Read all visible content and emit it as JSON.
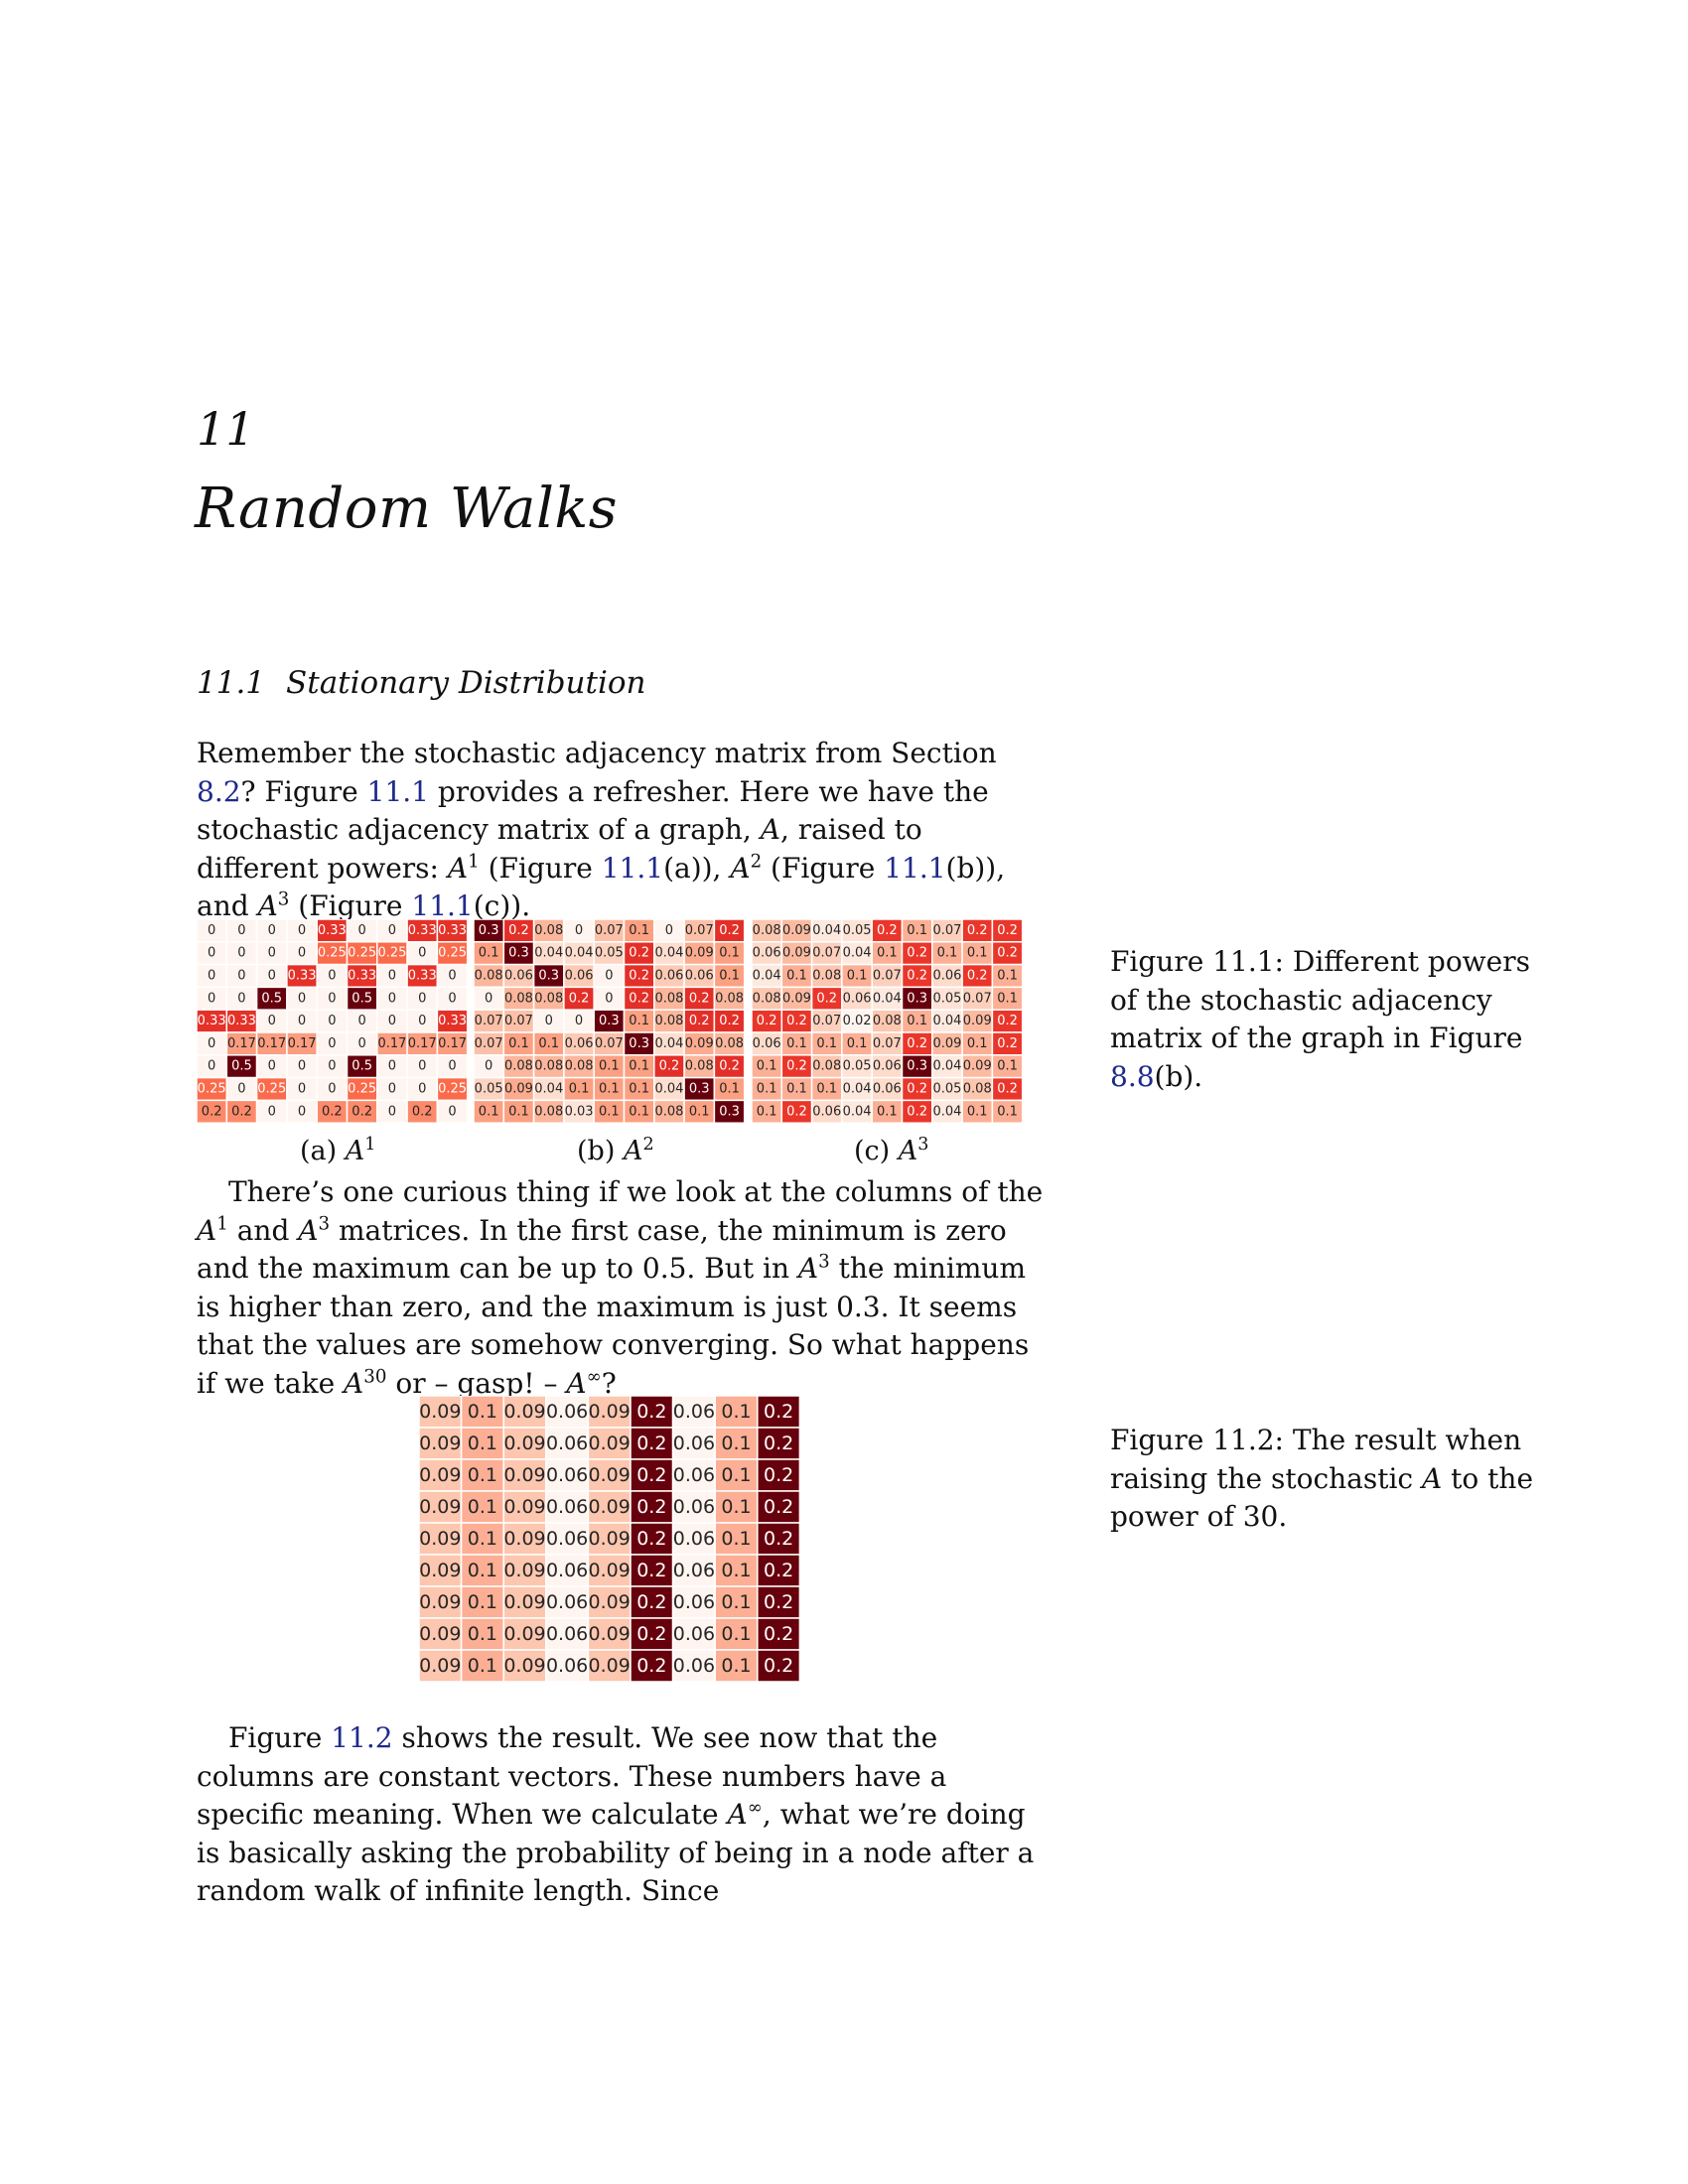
{
  "chapter": {
    "number": "11",
    "title": "Random Walks"
  },
  "section": {
    "number": "11.1",
    "title": "Stationary Distribution"
  },
  "para1": {
    "t1": "Remember the stochastic adjacency matrix from Section ",
    "r1": "8.2",
    "t2": "? Figure ",
    "r2": "11.1",
    "t3": " provides a refresher. Here we have the stochastic adjacency matrix of a graph, ",
    "A": "A",
    "t4": ", raised to different powers: ",
    "A1": "A",
    "s1": "1",
    "t5": " (Figure ",
    "r3": "11.1",
    "t6": "(a)), ",
    "A2": "A",
    "s2": "2",
    "t7": " (Figure ",
    "r4": "11.1",
    "t8": "(b)), and ",
    "A3": "A",
    "s3": "3",
    "t9": " (Figure ",
    "r5": "11.1",
    "t10": "(c))."
  },
  "figure1": {
    "caption_prefix": "Figure ",
    "caption_num": "11.1",
    "caption_text": ": Different powers of the stochastic adjacency matrix of the graph in Figure ",
    "caption_ref": "8.8",
    "caption_end": "(b).",
    "subcaptions": [
      {
        "label": "(a) ",
        "var": "A",
        "sup": "1"
      },
      {
        "label": "(b) ",
        "var": "A",
        "sup": "2"
      },
      {
        "label": "(c) ",
        "var": "A",
        "sup": "3"
      }
    ]
  },
  "para2": {
    "t1": "There’s one curious thing if we look at the columns of the ",
    "v1": "A",
    "s1": "1",
    "t2": " and ",
    "v2": "A",
    "s2": "3",
    "t3": " matrices. In the first case, the minimum is zero and the maximum can be up to 0.5. But in ",
    "v3": "A",
    "s3": "3",
    "t4": " the minimum is higher than zero, and the maximum is just 0.3. It seems that the values are somehow converging. So what happens if we take ",
    "v4": "A",
    "s4": "30",
    "t5": " or – gasp! – ",
    "v5": "A",
    "s5": "∞",
    "t6": "?"
  },
  "figure2": {
    "caption_prefix": "Figure ",
    "caption_num": "11.2",
    "caption_text": ": The result when raising the stochastic ",
    "caption_var": "A",
    "caption_end": " to the power of 30."
  },
  "para3": {
    "t1": "Figure ",
    "r1": "11.2",
    "t2": " shows the result. We see now that the columns are constant vectors. These numbers have a specific meaning. When we calculate ",
    "v1": "A",
    "s1": "∞",
    "t3": ", what we’re doing is basically asking the probability of being in a node after a random walk of infinite length. Since"
  },
  "chart_data": [
    {
      "type": "heatmap",
      "title": "A^1",
      "rows": [
        [
          "0",
          "0",
          "0",
          "0",
          "0.33",
          "0",
          "0",
          "0.33",
          "0.33"
        ],
        [
          "0",
          "0",
          "0",
          "0",
          "0.25",
          "0.25",
          "0.25",
          "0",
          "0.25"
        ],
        [
          "0",
          "0",
          "0",
          "0.33",
          "0",
          "0.33",
          "0",
          "0.33",
          "0"
        ],
        [
          "0",
          "0",
          "0.5",
          "0",
          "0",
          "0.5",
          "0",
          "0",
          "0"
        ],
        [
          "0.33",
          "0.33",
          "0",
          "0",
          "0",
          "0",
          "0",
          "0",
          "0.33"
        ],
        [
          "0",
          "0.17",
          "0.17",
          "0.17",
          "0",
          "0",
          "0.17",
          "0.17",
          "0.17"
        ],
        [
          "0",
          "0.5",
          "0",
          "0",
          "0",
          "0.5",
          "0",
          "0",
          "0"
        ],
        [
          "0.25",
          "0",
          "0.25",
          "0",
          "0",
          "0.25",
          "0",
          "0",
          "0.25"
        ],
        [
          "0.2",
          "0.2",
          "0",
          "0",
          "0.2",
          "0.2",
          "0",
          "0.2",
          "0"
        ]
      ]
    },
    {
      "type": "heatmap",
      "title": "A^2",
      "rows": [
        [
          "0.3",
          "0.2",
          "0.08",
          "0",
          "0.07",
          "0.1",
          "0",
          "0.07",
          "0.2"
        ],
        [
          "0.1",
          "0.3",
          "0.04",
          "0.04",
          "0.05",
          "0.2",
          "0.04",
          "0.09",
          "0.1"
        ],
        [
          "0.08",
          "0.06",
          "0.3",
          "0.06",
          "0",
          "0.2",
          "0.06",
          "0.06",
          "0.1"
        ],
        [
          "0",
          "0.08",
          "0.08",
          "0.2",
          "0",
          "0.2",
          "0.08",
          "0.2",
          "0.08"
        ],
        [
          "0.07",
          "0.07",
          "0",
          "0",
          "0.3",
          "0.1",
          "0.08",
          "0.2",
          "0.2"
        ],
        [
          "0.07",
          "0.1",
          "0.1",
          "0.06",
          "0.07",
          "0.3",
          "0.04",
          "0.09",
          "0.08"
        ],
        [
          "0",
          "0.08",
          "0.08",
          "0.08",
          "0.1",
          "0.1",
          "0.2",
          "0.08",
          "0.2"
        ],
        [
          "0.05",
          "0.09",
          "0.04",
          "0.1",
          "0.1",
          "0.1",
          "0.04",
          "0.3",
          "0.1"
        ],
        [
          "0.1",
          "0.1",
          "0.08",
          "0.03",
          "0.1",
          "0.1",
          "0.08",
          "0.1",
          "0.3"
        ]
      ]
    },
    {
      "type": "heatmap",
      "title": "A^3",
      "rows": [
        [
          "0.08",
          "0.09",
          "0.04",
          "0.05",
          "0.2",
          "0.1",
          "0.07",
          "0.2",
          "0.2"
        ],
        [
          "0.06",
          "0.09",
          "0.07",
          "0.04",
          "0.1",
          "0.2",
          "0.1",
          "0.1",
          "0.2"
        ],
        [
          "0.04",
          "0.1",
          "0.08",
          "0.1",
          "0.07",
          "0.2",
          "0.06",
          "0.2",
          "0.1"
        ],
        [
          "0.08",
          "0.09",
          "0.2",
          "0.06",
          "0.04",
          "0.3",
          "0.05",
          "0.07",
          "0.1"
        ],
        [
          "0.2",
          "0.2",
          "0.07",
          "0.02",
          "0.08",
          "0.1",
          "0.04",
          "0.09",
          "0.2"
        ],
        [
          "0.06",
          "0.1",
          "0.1",
          "0.1",
          "0.07",
          "0.2",
          "0.09",
          "0.1",
          "0.2"
        ],
        [
          "0.1",
          "0.2",
          "0.08",
          "0.05",
          "0.06",
          "0.3",
          "0.04",
          "0.09",
          "0.1"
        ],
        [
          "0.1",
          "0.1",
          "0.1",
          "0.04",
          "0.06",
          "0.2",
          "0.05",
          "0.08",
          "0.2"
        ],
        [
          "0.1",
          "0.2",
          "0.06",
          "0.04",
          "0.1",
          "0.2",
          "0.04",
          "0.1",
          "0.1"
        ]
      ]
    },
    {
      "type": "heatmap",
      "title": "A^30",
      "rows": [
        [
          "0.09",
          "0.1",
          "0.09",
          "0.06",
          "0.09",
          "0.2",
          "0.06",
          "0.1",
          "0.2"
        ],
        [
          "0.09",
          "0.1",
          "0.09",
          "0.06",
          "0.09",
          "0.2",
          "0.06",
          "0.1",
          "0.2"
        ],
        [
          "0.09",
          "0.1",
          "0.09",
          "0.06",
          "0.09",
          "0.2",
          "0.06",
          "0.1",
          "0.2"
        ],
        [
          "0.09",
          "0.1",
          "0.09",
          "0.06",
          "0.09",
          "0.2",
          "0.06",
          "0.1",
          "0.2"
        ],
        [
          "0.09",
          "0.1",
          "0.09",
          "0.06",
          "0.09",
          "0.2",
          "0.06",
          "0.1",
          "0.2"
        ],
        [
          "0.09",
          "0.1",
          "0.09",
          "0.06",
          "0.09",
          "0.2",
          "0.06",
          "0.1",
          "0.2"
        ],
        [
          "0.09",
          "0.1",
          "0.09",
          "0.06",
          "0.09",
          "0.2",
          "0.06",
          "0.1",
          "0.2"
        ],
        [
          "0.09",
          "0.1",
          "0.09",
          "0.06",
          "0.09",
          "0.2",
          "0.06",
          "0.1",
          "0.2"
        ],
        [
          "0.09",
          "0.1",
          "0.09",
          "0.06",
          "0.09",
          "0.2",
          "0.06",
          "0.1",
          "0.2"
        ]
      ]
    }
  ]
}
